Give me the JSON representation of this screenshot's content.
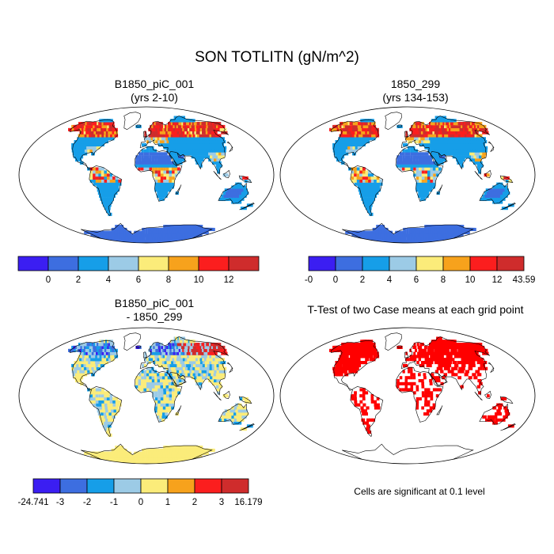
{
  "figure": {
    "title": "SON TOTLITN (gN/m^2)"
  },
  "panels": [
    {
      "id": "case1",
      "title_line1": "B1850_piC_001",
      "title_line2": "(yrs 2-10)"
    },
    {
      "id": "case2",
      "title_line1": "1850_299",
      "title_line2": "(yrs 134-153)"
    },
    {
      "id": "diff",
      "title_line1": "B1850_piC_001",
      "title_line2": "- 1850_299"
    },
    {
      "id": "ttest",
      "title_line1": "T-Test of two Case means at each grid point",
      "title_line2": ""
    }
  ],
  "colorbars": {
    "abs_left": {
      "colors": [
        "#3b1ef2",
        "#3d6ee0",
        "#169ee8",
        "#9ccbe6",
        "#fbec7a",
        "#f7a21c",
        "#fb1e1e",
        "#cf2c2c"
      ],
      "labels": [
        "0",
        "2",
        "4",
        "6",
        "8",
        "10",
        "12"
      ]
    },
    "abs_right": {
      "colors": [
        "#3b1ef2",
        "#3d6ee0",
        "#169ee8",
        "#9ccbe6",
        "#fbec7a",
        "#f7a21c",
        "#fb1e1e",
        "#cf2c2c"
      ],
      "labels": [
        "-0",
        "0",
        "2",
        "4",
        "6",
        "8",
        "10",
        "12",
        "43.59"
      ]
    },
    "diff": {
      "colors": [
        "#3b1ef2",
        "#3d6ee0",
        "#169ee8",
        "#9ccbe6",
        "#fbec7a",
        "#f7a21c",
        "#fb1e1e",
        "#cf2c2c"
      ],
      "labels": [
        "-24.741",
        "-3",
        "-2",
        "-1",
        "0",
        "1",
        "2",
        "3",
        "16.179"
      ]
    }
  },
  "ttest_note": "Cells are significant at 0.1 level",
  "colors": {
    "ocean": "#ffffff",
    "land_base_abs": "#3d6ee0",
    "land_base_diff": "#fbec7a",
    "significant": "#ff0000"
  }
}
